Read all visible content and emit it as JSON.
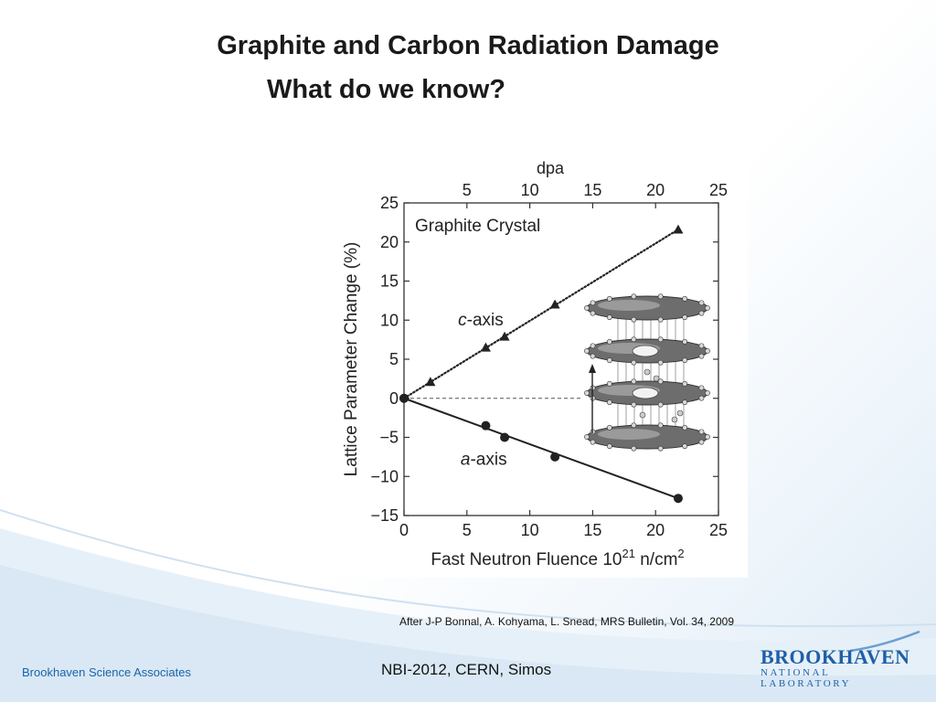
{
  "slide": {
    "title_line1": "Graphite and Carbon Radiation Damage",
    "title_line2": "What do we know?",
    "citation": "After J-P Bonnal, A. Kohyama, L. Snead, MRS Bulletin, Vol. 34, 2009",
    "footer_left": "Brookhaven Science Associates",
    "footer_center": "NBI-2012, CERN, Simos",
    "logo_main": "BROOKHAVEN",
    "logo_sub": "NATIONAL LABORATORY"
  },
  "chart_data": {
    "type": "line",
    "title": "Graphite Crystal",
    "xlabel": "Fast Neutron Fluence 10^21 n/cm^2",
    "xlabel_parts": {
      "base": "Fast Neutron Fluence 10",
      "sup1": "21",
      "mid": " n/cm",
      "sup2": "2"
    },
    "ylabel": "Lattice Parameter Change (%)",
    "top_xlabel": "dpa",
    "xlim": [
      0,
      25
    ],
    "ylim": [
      -15,
      25
    ],
    "x_ticks": [
      0,
      5,
      10,
      15,
      20,
      25
    ],
    "y_ticks": [
      25,
      20,
      15,
      10,
      5,
      0,
      -5,
      -10,
      -15
    ],
    "y_tick_labels": [
      "25",
      "20",
      "15",
      "10",
      "5",
      "0",
      "−5",
      "−10",
      "−15"
    ],
    "top_ticks": [
      5,
      10,
      15,
      20,
      25
    ],
    "series": [
      {
        "name": "c-axis",
        "label_italic": "c",
        "label_rest": "-axis",
        "marker": "triangle",
        "line_style": "dotted",
        "color": "#222222",
        "points": [
          [
            0,
            0
          ],
          [
            2.1,
            2.1
          ],
          [
            6.5,
            6.5
          ],
          [
            8,
            7.9
          ],
          [
            12,
            12
          ],
          [
            21.8,
            21.6
          ]
        ]
      },
      {
        "name": "a-axis",
        "label_italic": "a",
        "label_rest": "-axis",
        "marker": "circle",
        "line_style": "solid",
        "color": "#222222",
        "points": [
          [
            0,
            0
          ],
          [
            6.5,
            -3.5
          ],
          [
            8,
            -5
          ],
          [
            12,
            -7.5
          ],
          [
            21.8,
            -12.8
          ]
        ]
      }
    ],
    "reference_line": {
      "y": 0,
      "style": "dashed",
      "x_end": 14.2
    },
    "grid": false
  }
}
